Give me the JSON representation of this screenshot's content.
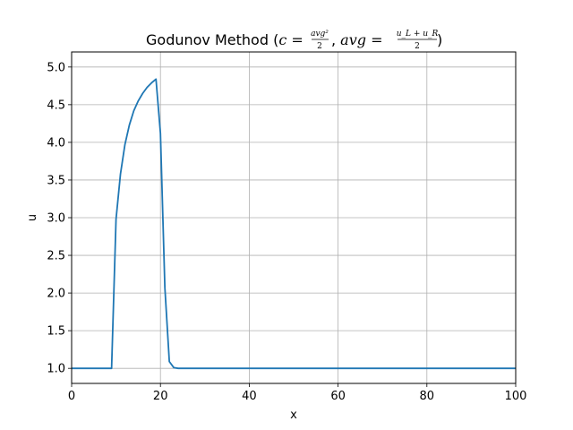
{
  "chart_data": {
    "type": "line",
    "title_prefix": "Godunov Method (",
    "title_c_eq": "c = ",
    "title_c_num": "avg²",
    "title_c_den": "2",
    "title_sep": ", ",
    "title_avg_eq": "avg = ",
    "title_avg_num": "u_L + u_R",
    "title_avg_den": "2",
    "title_suffix": ")",
    "xlabel": "x",
    "ylabel": "u",
    "xlim": [
      0,
      100
    ],
    "ylim": [
      0.8,
      5.2
    ],
    "xticks": [
      0,
      20,
      40,
      60,
      80,
      100
    ],
    "xtick_labels": [
      "0",
      "20",
      "40",
      "60",
      "80",
      "100"
    ],
    "yticks": [
      1.0,
      1.5,
      2.0,
      2.5,
      3.0,
      3.5,
      4.0,
      4.5,
      5.0
    ],
    "ytick_labels": [
      "1.0",
      "1.5",
      "2.0",
      "2.5",
      "3.0",
      "3.5",
      "4.0",
      "4.5",
      "5.0"
    ],
    "grid": true,
    "line_color": "#1f77b4",
    "series": [
      {
        "x": [
          0,
          9,
          10,
          11,
          12,
          13,
          14,
          15,
          16,
          17,
          18,
          19,
          20,
          21,
          22,
          23,
          24,
          100
        ],
        "y": [
          1.0,
          1.0,
          2.98,
          3.58,
          3.97,
          4.23,
          4.42,
          4.55,
          4.65,
          4.73,
          4.79,
          4.84,
          4.12,
          2.07,
          1.09,
          1.01,
          1.0,
          1.0
        ]
      }
    ]
  }
}
